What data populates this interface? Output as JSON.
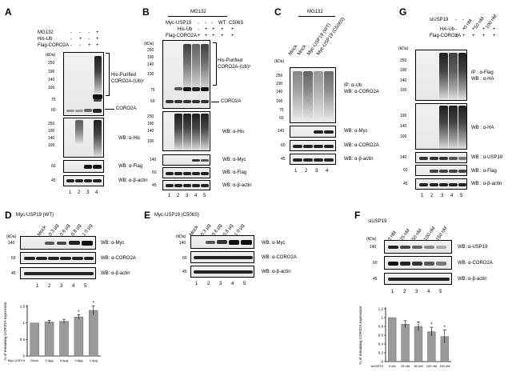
{
  "panels": {
    "A": {
      "label": "A",
      "rows": [
        "MG132",
        "His-Ub",
        "Flag-CORO2A"
      ],
      "signs": [
        [
          "-",
          "-",
          "-",
          "+"
        ],
        [
          "-",
          "+",
          "-",
          "+"
        ],
        [
          "-",
          "-",
          "+",
          "+"
        ]
      ],
      "kda": "(kDa)",
      "mw1": [
        "250",
        "190",
        "140",
        "100",
        "75",
        "60"
      ],
      "mw2": [
        "250",
        "190",
        "140",
        "100"
      ],
      "mw3": "60",
      "mw4": "45",
      "annot_purified": "His-Purified",
      "annot_ub": "CORO2A-(Ub)ⁿ",
      "annot_coro": "CORO2A",
      "wb_his": "WB: α-His",
      "wb_flag": "WB: α-Flag",
      "wb_actin": "WB: α-β-actin",
      "lanes": [
        "1",
        "2",
        "3",
        "4"
      ]
    },
    "B": {
      "label": "B",
      "mg132": "MG132",
      "wt": "WT",
      "mut": "C506S",
      "rows": [
        "Myc-USP19",
        "His-Ub",
        "Flag-CORO2A"
      ],
      "signs": [
        [
          "-",
          "-",
          "-"
        ],
        [
          "-",
          "+",
          "+",
          "+",
          "+"
        ],
        [
          "+",
          "+",
          "+",
          "+",
          "+"
        ]
      ],
      "kda": "(kDa)",
      "mw1": [
        "250",
        "190",
        "140",
        "100",
        "75",
        "60"
      ],
      "mw2": [
        "250",
        "190",
        "140",
        "100"
      ],
      "mw3": "140",
      "mw4": "60",
      "mw5": "45",
      "annot_purified": "His-Purified",
      "annot_ub": "CORO2A-(Ub)ⁿ",
      "annot_coro": "CORO2A",
      "wb_his": "WB: α-His",
      "wb_myc": "WB: α-Myc",
      "wb_flag": "WB: α-Flag",
      "wb_actin": "WB: α-β-actin",
      "lanes": [
        "1",
        "2",
        "3",
        "4",
        "5"
      ]
    },
    "C": {
      "label": "C",
      "mg132": "MG132",
      "cols": [
        "Mock",
        "Mock",
        "Myc-USP19 (WT)",
        "Myc-USP19 (C506S)"
      ],
      "kda": "(kDa)",
      "mw1": [
        "250",
        "190",
        "140",
        "100",
        "75",
        "60"
      ],
      "mw2": "140",
      "mw3": "60",
      "mw4": "45",
      "ip": "IP: α-Ub",
      "wb_coro": "WB: α-CORO2A",
      "wb_myc": "WB: α-Myc",
      "wb_coro2": "WB: α-CORO2A",
      "wb_actin": "WB: α-β-actin",
      "lanes": [
        "1",
        "2",
        "3",
        "4"
      ]
    },
    "D": {
      "label": "D",
      "title": "Myc-USP19 (WT)",
      "cols": [
        "Mock",
        "0.3 μg",
        "0.6 μg",
        "0.8 μg",
        "1.0 μg"
      ],
      "kda": "(kDa)",
      "mw": [
        "140",
        "60",
        "45"
      ],
      "wb_myc": "WB: α-Myc",
      "wb_coro": "WB: α-CORO2A",
      "wb_actin": "WB: α-β-actin",
      "lanes": [
        "1",
        "2",
        "3",
        "4",
        "5"
      ]
    },
    "E": {
      "label": "E",
      "title": "Myc-USP19 (C506S)",
      "cols": [
        "Mock",
        "0.3 μg",
        "0.6 μg",
        "0.8 μg",
        "1.0 μg"
      ],
      "kda": "(kDa)",
      "mw": [
        "140",
        "60",
        "45"
      ],
      "wb_myc": "WB: α-Myc",
      "wb_coro": "WB: α-CORO2A",
      "wb_actin": "WB: α-β-actin",
      "lanes": [
        "1",
        "2",
        "3",
        "4",
        "5"
      ]
    },
    "F": {
      "label": "F",
      "title": "siUSP19",
      "cols": [
        "0 nM",
        "25 nM",
        "50 nM",
        "100 nM",
        "150 nM"
      ],
      "kda": "(kDa)",
      "mw": [
        "140",
        "60",
        "45"
      ],
      "wb_usp": "WB: α-USP19",
      "wb_coro": "WB: α-CORO2A",
      "wb_actin": "WB: α-β-actin",
      "lanes": [
        "1",
        "2",
        "3",
        "4",
        "5"
      ]
    },
    "G": {
      "label": "G",
      "rows": [
        "siUSP19",
        "HA-Ub",
        "Flag-CORO2A"
      ],
      "si_cols": [
        "-",
        "-",
        "0 nM",
        "50 nM",
        "100 nM"
      ],
      "signs": [
        [
          "-",
          "+",
          "+",
          "+",
          "+"
        ],
        [
          "+",
          "+",
          "+",
          "+",
          "+"
        ]
      ],
      "kda": "(kDa)",
      "mw1": [
        "250",
        "190",
        "140",
        "100"
      ],
      "mw2": [
        "190",
        "140",
        "100"
      ],
      "mw3": "140",
      "mw4": "60",
      "mw5": "45",
      "ip": "IP : α-Flag",
      "wb_ha": "WB : α-HA",
      "wb_ha2": "WB : α-HA",
      "wb_usp": "WB : α-USP19",
      "wb_flag": "WB : α-Flag",
      "wb_actin": "WB : α-β-actin",
      "lanes": [
        "1",
        "2",
        "3",
        "4",
        "5"
      ]
    }
  },
  "chart_data": [
    {
      "type": "bar",
      "panel": "D",
      "ylabel": "% of remaining CORO2A expression",
      "xlabel_prefix": "Myc-USP19",
      "categories": [
        "Mock",
        "0.3μg",
        "0.6μg",
        "0.8μg",
        "1.0μg"
      ],
      "values": [
        1.0,
        1.03,
        1.05,
        1.18,
        1.38
      ],
      "errors": [
        0.0,
        0.05,
        0.06,
        0.07,
        0.14
      ],
      "significant": [
        false,
        false,
        false,
        true,
        true
      ],
      "star": "*",
      "ylim": [
        0,
        1.5
      ],
      "yticks": [
        "0",
        "0.5",
        "1",
        "1.5"
      ]
    },
    {
      "type": "bar",
      "panel": "F",
      "ylabel": "% of remaining CORO2A expression",
      "xlabel_prefix": "siUSP19",
      "categories": [
        "0 nM",
        "25 nM",
        "50 nM",
        "100 nM",
        "150 nM"
      ],
      "values": [
        1.0,
        0.85,
        0.8,
        0.68,
        0.57
      ],
      "errors": [
        0.0,
        0.08,
        0.1,
        0.1,
        0.15
      ],
      "significant": [
        false,
        false,
        false,
        true,
        true
      ],
      "star": "*",
      "ylim": [
        0,
        1.2
      ],
      "yticks": [
        "0",
        "0.2",
        "0.4",
        "0.6",
        "0.8",
        "1",
        "1.2"
      ]
    }
  ]
}
